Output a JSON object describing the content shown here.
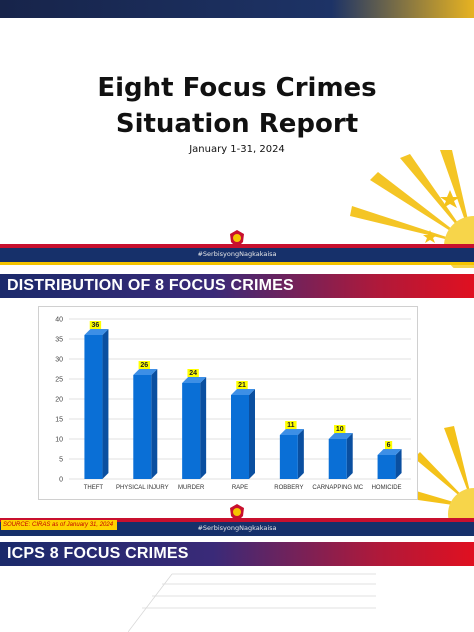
{
  "slide1": {
    "title_line1": "Eight Focus Crimes",
    "title_line2": "Situation Report",
    "date": "January 1-31, 2024",
    "hashtag": "#SerbisyongNagkakaisa"
  },
  "slide2": {
    "section_title": "DISTRIBUTION OF 8 FOCUS CRIMES",
    "hashtag": "#SerbisyongNagkakaisa",
    "source": "SOURCE: CIRAS as of January 31, 2024"
  },
  "slide3": {
    "section_title": "ICPS 8 FOCUS CRIMES",
    "visible_tick": "5"
  },
  "colors": {
    "bar": "#0a6fd6",
    "bar_side": "#0a4fa0",
    "label_bg": "#ffff00",
    "navy": "#16306a",
    "red": "#c8102e",
    "gold": "#f5c400"
  },
  "chart_data": {
    "type": "bar",
    "categories": [
      "THEFT",
      "PHYSICAL INJURY",
      "MURDER",
      "RAPE",
      "ROBBERY",
      "CARNAPPING MC",
      "HOMICIDE"
    ],
    "values": [
      36,
      26,
      24,
      21,
      11,
      10,
      6
    ],
    "yticks": [
      0,
      5,
      10,
      15,
      20,
      25,
      30,
      35,
      40
    ],
    "ylim": [
      0,
      40
    ],
    "grid": true,
    "style": "3d-bars"
  }
}
